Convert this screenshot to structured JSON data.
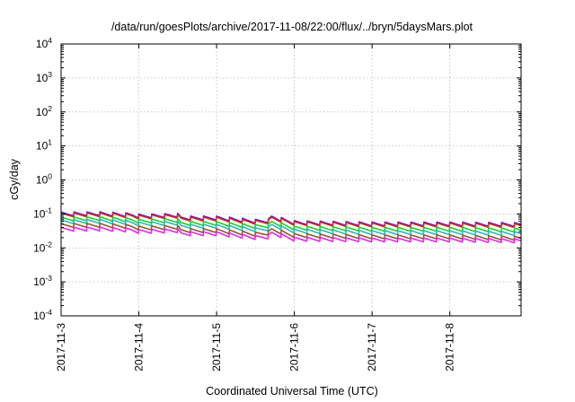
{
  "chart_data": {
    "type": "line",
    "title": "/data/run/goesPlots/archive/2017-11-08/22:00/flux/../bryn/5daysMars.plot",
    "xlabel": "Coordinated Universal Time (UTC)",
    "ylabel": "cGy/day",
    "y_scale": "log",
    "ylim": [
      0.0001,
      10000
    ],
    "xlim": [
      "2017-11-03T00:00",
      "2017-11-08T22:00"
    ],
    "grid": true,
    "x_ticks": [
      "2017-11-3",
      "2017-11-4",
      "2017-11-5",
      "2017-11-6",
      "2017-11-7",
      "2017-11-8"
    ],
    "y_ticks": [
      {
        "value": 0.0001,
        "base": "10",
        "exp": "-4"
      },
      {
        "value": 0.001,
        "base": "10",
        "exp": "-3"
      },
      {
        "value": 0.01,
        "base": "10",
        "exp": "-2"
      },
      {
        "value": 0.1,
        "base": "10",
        "exp": "-1"
      },
      {
        "value": 1,
        "base": "10",
        "exp": "0"
      },
      {
        "value": 10,
        "base": "10",
        "exp": "1"
      },
      {
        "value": 100,
        "base": "10",
        "exp": "2"
      },
      {
        "value": 1000,
        "base": "10",
        "exp": "3"
      },
      {
        "value": 10000,
        "base": "10",
        "exp": "4"
      }
    ],
    "sawtooth_period_hours": 4,
    "series": [
      {
        "color": "#2222ee",
        "values": [
          {
            "x": "2017-11-03T00:00",
            "y": 0.098
          },
          {
            "x": "2017-11-03T12:00",
            "y": 0.1
          },
          {
            "x": "2017-11-03T22:00",
            "y": 0.092
          },
          {
            "x": "2017-11-04T00:00",
            "y": 0.085
          },
          {
            "x": "2017-11-04T12:00",
            "y": 0.09
          },
          {
            "x": "2017-11-04T13:00",
            "y": 0.075
          },
          {
            "x": "2017-11-05T00:00",
            "y": 0.075
          },
          {
            "x": "2017-11-05T12:00",
            "y": 0.06
          },
          {
            "x": "2017-11-05T16:00",
            "y": 0.062
          },
          {
            "x": "2017-11-05T17:00",
            "y": 0.08
          },
          {
            "x": "2017-11-06T00:00",
            "y": 0.055
          },
          {
            "x": "2017-11-07T00:00",
            "y": 0.05
          },
          {
            "x": "2017-11-08T00:00",
            "y": 0.05
          },
          {
            "x": "2017-11-08T22:00",
            "y": 0.048
          }
        ]
      },
      {
        "color": "#ee2222",
        "values": [
          {
            "x": "2017-11-03T00:00",
            "y": 0.092
          },
          {
            "x": "2017-11-03T12:00",
            "y": 0.094
          },
          {
            "x": "2017-11-03T22:00",
            "y": 0.087
          },
          {
            "x": "2017-11-04T00:00",
            "y": 0.08
          },
          {
            "x": "2017-11-04T12:00",
            "y": 0.085
          },
          {
            "x": "2017-11-04T13:00",
            "y": 0.07
          },
          {
            "x": "2017-11-05T00:00",
            "y": 0.07
          },
          {
            "x": "2017-11-05T12:00",
            "y": 0.056
          },
          {
            "x": "2017-11-05T16:00",
            "y": 0.058
          },
          {
            "x": "2017-11-05T17:00",
            "y": 0.075
          },
          {
            "x": "2017-11-06T00:00",
            "y": 0.052
          },
          {
            "x": "2017-11-07T00:00",
            "y": 0.047
          },
          {
            "x": "2017-11-08T00:00",
            "y": 0.047
          },
          {
            "x": "2017-11-08T22:00",
            "y": 0.045
          }
        ]
      },
      {
        "color": "#22cc22",
        "values": [
          {
            "x": "2017-11-03T00:00",
            "y": 0.07
          },
          {
            "x": "2017-11-03T12:00",
            "y": 0.072
          },
          {
            "x": "2017-11-03T22:00",
            "y": 0.066
          },
          {
            "x": "2017-11-04T00:00",
            "y": 0.06
          },
          {
            "x": "2017-11-04T12:00",
            "y": 0.064
          },
          {
            "x": "2017-11-04T13:00",
            "y": 0.052
          },
          {
            "x": "2017-11-05T00:00",
            "y": 0.052
          },
          {
            "x": "2017-11-05T12:00",
            "y": 0.042
          },
          {
            "x": "2017-11-05T16:00",
            "y": 0.044
          },
          {
            "x": "2017-11-05T17:00",
            "y": 0.056
          },
          {
            "x": "2017-11-06T00:00",
            "y": 0.038
          },
          {
            "x": "2017-11-07T00:00",
            "y": 0.035
          },
          {
            "x": "2017-11-08T00:00",
            "y": 0.035
          },
          {
            "x": "2017-11-08T22:00",
            "y": 0.033
          }
        ]
      },
      {
        "color": "#22bbbb",
        "values": [
          {
            "x": "2017-11-03T00:00",
            "y": 0.058
          },
          {
            "x": "2017-11-03T12:00",
            "y": 0.06
          },
          {
            "x": "2017-11-03T22:00",
            "y": 0.055
          },
          {
            "x": "2017-11-04T00:00",
            "y": 0.05
          },
          {
            "x": "2017-11-04T12:00",
            "y": 0.053
          },
          {
            "x": "2017-11-04T13:00",
            "y": 0.043
          },
          {
            "x": "2017-11-05T00:00",
            "y": 0.043
          },
          {
            "x": "2017-11-05T12:00",
            "y": 0.034
          },
          {
            "x": "2017-11-05T16:00",
            "y": 0.036
          },
          {
            "x": "2017-11-05T17:00",
            "y": 0.046
          },
          {
            "x": "2017-11-06T00:00",
            "y": 0.031
          },
          {
            "x": "2017-11-07T00:00",
            "y": 0.028
          },
          {
            "x": "2017-11-08T00:00",
            "y": 0.028
          },
          {
            "x": "2017-11-08T22:00",
            "y": 0.026
          }
        ]
      },
      {
        "color": "#8a5a2a",
        "values": [
          {
            "x": "2017-11-03T00:00",
            "y": 0.045
          },
          {
            "x": "2017-11-03T12:00",
            "y": 0.046
          },
          {
            "x": "2017-11-03T22:00",
            "y": 0.042
          },
          {
            "x": "2017-11-04T00:00",
            "y": 0.038
          },
          {
            "x": "2017-11-04T12:00",
            "y": 0.04
          },
          {
            "x": "2017-11-04T13:00",
            "y": 0.032
          },
          {
            "x": "2017-11-05T00:00",
            "y": 0.032
          },
          {
            "x": "2017-11-05T12:00",
            "y": 0.025
          },
          {
            "x": "2017-11-05T16:00",
            "y": 0.027
          },
          {
            "x": "2017-11-05T17:00",
            "y": 0.034
          },
          {
            "x": "2017-11-06T00:00",
            "y": 0.023
          },
          {
            "x": "2017-11-07T00:00",
            "y": 0.021
          },
          {
            "x": "2017-11-08T00:00",
            "y": 0.021
          },
          {
            "x": "2017-11-08T22:00",
            "y": 0.019
          }
        ]
      },
      {
        "color": "#ee22ee",
        "values": [
          {
            "x": "2017-11-03T00:00",
            "y": 0.035
          },
          {
            "x": "2017-11-03T12:00",
            "y": 0.036
          },
          {
            "x": "2017-11-03T22:00",
            "y": 0.033
          },
          {
            "x": "2017-11-04T00:00",
            "y": 0.03
          },
          {
            "x": "2017-11-04T12:00",
            "y": 0.032
          },
          {
            "x": "2017-11-04T13:00",
            "y": 0.026
          },
          {
            "x": "2017-11-05T00:00",
            "y": 0.026
          },
          {
            "x": "2017-11-05T12:00",
            "y": 0.02
          },
          {
            "x": "2017-11-05T16:00",
            "y": 0.021
          },
          {
            "x": "2017-11-05T17:00",
            "y": 0.027
          },
          {
            "x": "2017-11-06T00:00",
            "y": 0.018
          },
          {
            "x": "2017-11-07T00:00",
            "y": 0.017
          },
          {
            "x": "2017-11-08T00:00",
            "y": 0.017
          },
          {
            "x": "2017-11-08T22:00",
            "y": 0.016
          }
        ]
      }
    ]
  }
}
